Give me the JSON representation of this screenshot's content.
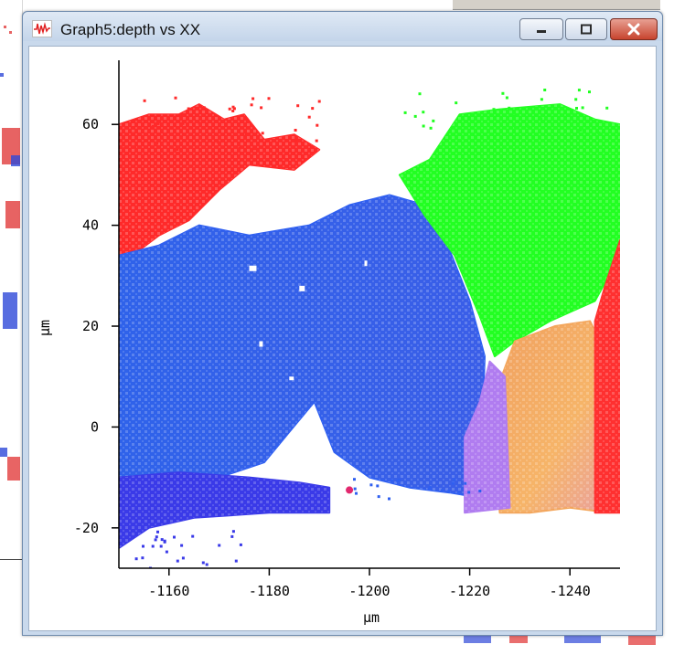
{
  "window": {
    "title": "Graph5:depth vs XX",
    "app_icon": "graph-waveform-icon",
    "buttons": {
      "minimize": "minimize-icon",
      "maximize": "maximize-icon",
      "close": "close-icon"
    }
  },
  "chart_data": {
    "type": "heatmap",
    "title": "",
    "xlabel": "µm",
    "ylabel": "µm",
    "xlim": [
      -1150,
      -1250
    ],
    "ylim": [
      -28,
      70
    ],
    "x_ticks": [
      "-1160",
      "-1180",
      "-1200",
      "-1220",
      "-1240"
    ],
    "y_ticks": [
      "60",
      "40",
      "20",
      "0",
      "-20"
    ],
    "x_tick_values": [
      -1160,
      -1180,
      -1200,
      -1220,
      -1240
    ],
    "y_tick_values": [
      60,
      40,
      20,
      0,
      -20
    ],
    "grid": false,
    "legend": "none",
    "regions": [
      {
        "name": "red upper-left",
        "color": "#ff2a2a",
        "x_range": [
          -1150,
          -1190
        ],
        "y_range": [
          34,
          64
        ]
      },
      {
        "name": "blue main",
        "color": "#2f5ff0",
        "x_range": [
          -1150,
          -1222
        ],
        "y_range": [
          -20,
          46
        ]
      },
      {
        "name": "violet lower band",
        "color": "#3a3ae8",
        "x_range": [
          -1150,
          -1192
        ],
        "y_range": [
          -24,
          -10
        ]
      },
      {
        "name": "green upper-right",
        "color": "#22ff22",
        "x_range": [
          -1206,
          -1250
        ],
        "y_range": [
          17,
          64
        ]
      },
      {
        "name": "orange lower-right",
        "color": "#f3a65c",
        "x_range": [
          -1224,
          -1248
        ],
        "y_range": [
          -17,
          22
        ]
      },
      {
        "name": "lavender strip",
        "color": "#b07cf0",
        "x_range": [
          -1219,
          -1227
        ],
        "y_range": [
          -17,
          13
        ]
      },
      {
        "name": "red right edge",
        "color": "#ff3030",
        "x_range": [
          -1245,
          -1250
        ],
        "y_range": [
          -17,
          37
        ]
      }
    ]
  }
}
